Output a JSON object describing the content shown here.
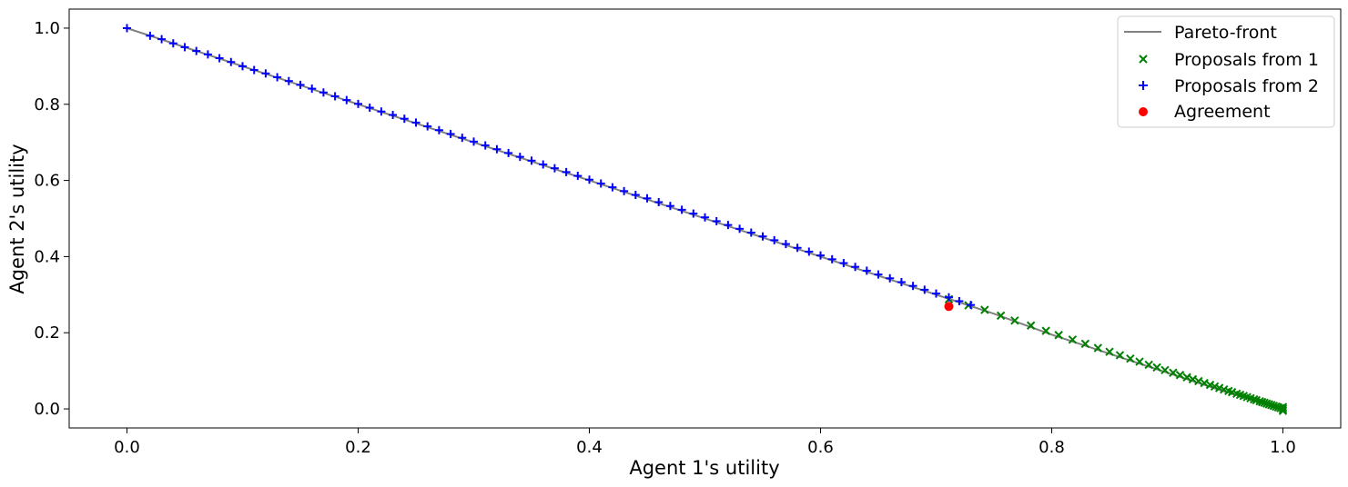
{
  "chart_data": {
    "type": "scatter",
    "xlabel": "Agent 1's utility",
    "ylabel": "Agent 2's utility",
    "xlim": [
      -0.05,
      1.05
    ],
    "ylim": [
      -0.05,
      1.05
    ],
    "xticks": [
      0.0,
      0.2,
      0.4,
      0.6,
      0.8,
      1.0
    ],
    "yticks": [
      0.0,
      0.2,
      0.4,
      0.6,
      0.8,
      1.0
    ],
    "xtick_labels": [
      "0.0",
      "0.2",
      "0.4",
      "0.6",
      "0.8",
      "1.0"
    ],
    "ytick_labels": [
      "0.0",
      "0.2",
      "0.4",
      "0.6",
      "0.8",
      "1.0"
    ],
    "grid": false,
    "legend_position": "top-right",
    "legend": [
      "Pareto-front",
      "Proposals from 1",
      "Proposals from 2",
      "Agreement"
    ],
    "colors": {
      "pareto": "#808080",
      "proposals_1": "#008000",
      "proposals_2": "#0000ff",
      "agreement": "#ff0000"
    },
    "series": [
      {
        "name": "Pareto-front",
        "kind": "line",
        "points": [
          [
            0.0,
            1.0
          ],
          [
            0.2,
            0.8
          ],
          [
            0.4,
            0.6
          ],
          [
            0.6,
            0.4
          ],
          [
            0.71,
            0.29
          ],
          [
            0.75,
            0.25
          ],
          [
            0.8,
            0.195
          ],
          [
            0.85,
            0.145
          ],
          [
            0.9,
            0.095
          ],
          [
            0.95,
            0.045
          ],
          [
            1.0,
            0.0
          ]
        ]
      },
      {
        "name": "Proposals from 1",
        "kind": "x-marker",
        "points": [
          [
            0.711,
            0.288
          ],
          [
            0.728,
            0.272
          ],
          [
            0.742,
            0.26
          ],
          [
            0.756,
            0.245
          ],
          [
            0.768,
            0.232
          ],
          [
            0.782,
            0.219
          ],
          [
            0.795,
            0.205
          ],
          [
            0.806,
            0.194
          ],
          [
            0.818,
            0.182
          ],
          [
            0.829,
            0.171
          ],
          [
            0.84,
            0.16
          ],
          [
            0.85,
            0.15
          ],
          [
            0.859,
            0.141
          ],
          [
            0.868,
            0.132
          ],
          [
            0.876,
            0.124
          ],
          [
            0.884,
            0.116
          ],
          [
            0.891,
            0.109
          ],
          [
            0.898,
            0.102
          ],
          [
            0.905,
            0.095
          ],
          [
            0.911,
            0.089
          ],
          [
            0.917,
            0.083
          ],
          [
            0.922,
            0.078
          ],
          [
            0.927,
            0.073
          ],
          [
            0.932,
            0.068
          ],
          [
            0.937,
            0.063
          ],
          [
            0.941,
            0.059
          ],
          [
            0.945,
            0.055
          ],
          [
            0.949,
            0.051
          ],
          [
            0.953,
            0.047
          ],
          [
            0.956,
            0.044
          ],
          [
            0.96,
            0.04
          ],
          [
            0.963,
            0.037
          ],
          [
            0.966,
            0.034
          ],
          [
            0.969,
            0.031
          ],
          [
            0.972,
            0.028
          ],
          [
            0.975,
            0.025
          ],
          [
            0.977,
            0.023
          ],
          [
            0.98,
            0.02
          ],
          [
            0.982,
            0.018
          ],
          [
            0.984,
            0.016
          ],
          [
            0.986,
            0.014
          ],
          [
            0.988,
            0.012
          ],
          [
            0.99,
            0.01
          ],
          [
            0.992,
            0.008
          ],
          [
            0.994,
            0.006
          ],
          [
            0.996,
            0.004
          ],
          [
            0.998,
            0.002
          ],
          [
            1.0,
            0.0
          ],
          [
            1.0,
            0.005
          ],
          [
            1.0,
            -0.005
          ]
        ]
      },
      {
        "name": "Proposals from 2",
        "kind": "plus-marker",
        "points": [
          [
            0.0,
            1.0
          ],
          [
            0.02,
            0.98
          ],
          [
            0.03,
            0.971
          ],
          [
            0.04,
            0.96
          ],
          [
            0.05,
            0.95
          ],
          [
            0.06,
            0.94
          ],
          [
            0.07,
            0.931
          ],
          [
            0.08,
            0.921
          ],
          [
            0.09,
            0.911
          ],
          [
            0.1,
            0.9
          ],
          [
            0.11,
            0.89
          ],
          [
            0.12,
            0.881
          ],
          [
            0.13,
            0.871
          ],
          [
            0.14,
            0.861
          ],
          [
            0.15,
            0.851
          ],
          [
            0.16,
            0.841
          ],
          [
            0.17,
            0.831
          ],
          [
            0.18,
            0.821
          ],
          [
            0.19,
            0.811
          ],
          [
            0.2,
            0.801
          ],
          [
            0.21,
            0.791
          ],
          [
            0.22,
            0.781
          ],
          [
            0.23,
            0.772
          ],
          [
            0.24,
            0.762
          ],
          [
            0.25,
            0.752
          ],
          [
            0.26,
            0.742
          ],
          [
            0.27,
            0.732
          ],
          [
            0.28,
            0.722
          ],
          [
            0.29,
            0.712
          ],
          [
            0.3,
            0.702
          ],
          [
            0.31,
            0.692
          ],
          [
            0.32,
            0.682
          ],
          [
            0.33,
            0.672
          ],
          [
            0.34,
            0.662
          ],
          [
            0.35,
            0.652
          ],
          [
            0.36,
            0.642
          ],
          [
            0.37,
            0.632
          ],
          [
            0.38,
            0.622
          ],
          [
            0.39,
            0.612
          ],
          [
            0.4,
            0.602
          ],
          [
            0.41,
            0.592
          ],
          [
            0.42,
            0.582
          ],
          [
            0.43,
            0.572
          ],
          [
            0.44,
            0.562
          ],
          [
            0.45,
            0.553
          ],
          [
            0.46,
            0.543
          ],
          [
            0.47,
            0.533
          ],
          [
            0.48,
            0.523
          ],
          [
            0.49,
            0.513
          ],
          [
            0.5,
            0.503
          ],
          [
            0.51,
            0.493
          ],
          [
            0.52,
            0.483
          ],
          [
            0.53,
            0.473
          ],
          [
            0.54,
            0.463
          ],
          [
            0.55,
            0.453
          ],
          [
            0.56,
            0.443
          ],
          [
            0.57,
            0.433
          ],
          [
            0.58,
            0.423
          ],
          [
            0.59,
            0.413
          ],
          [
            0.6,
            0.403
          ],
          [
            0.61,
            0.393
          ],
          [
            0.62,
            0.383
          ],
          [
            0.63,
            0.373
          ],
          [
            0.64,
            0.363
          ],
          [
            0.65,
            0.353
          ],
          [
            0.66,
            0.343
          ],
          [
            0.67,
            0.333
          ],
          [
            0.68,
            0.323
          ],
          [
            0.69,
            0.313
          ],
          [
            0.7,
            0.303
          ],
          [
            0.711,
            0.293
          ],
          [
            0.72,
            0.283
          ],
          [
            0.73,
            0.273
          ]
        ]
      },
      {
        "name": "Agreement",
        "kind": "dot",
        "points": [
          [
            0.711,
            0.269
          ]
        ]
      }
    ]
  }
}
